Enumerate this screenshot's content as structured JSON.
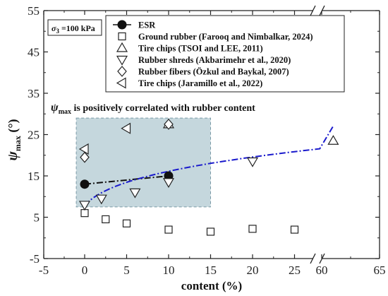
{
  "chart_data": {
    "type": "scatter",
    "x_axis": {
      "label": "content (%)",
      "ticks": [
        "-5",
        "0",
        "5",
        "10",
        "15",
        "20",
        "25",
        "60",
        "65"
      ],
      "tick_values": [
        -5,
        0,
        5,
        10,
        15,
        20,
        25,
        60,
        65
      ],
      "broken": true,
      "segments": [
        [
          -5,
          28
        ],
        [
          59.5,
          65
        ]
      ]
    },
    "y_axis": {
      "label_symbol": "ψ",
      "label_subscript": "max",
      "label_unit": " (°)",
      "ticks": [
        "-5",
        "5",
        "15",
        "25",
        "35",
        "45",
        "55"
      ],
      "ylim": [
        -5,
        55
      ],
      "broken_at_top": true
    },
    "condition_label": {
      "symbol": "σ",
      "subscript": "3",
      "text": " =100 kPa"
    },
    "annotation": {
      "symbol": "ψ",
      "subscript": "max",
      "text": " is positively correlated with rubber content"
    },
    "highlight_region": {
      "x": [
        -1,
        15
      ],
      "y": [
        7.5,
        29
      ]
    },
    "series": [
      {
        "name": "ESR",
        "marker": "filled-circle",
        "points": [
          [
            0,
            13
          ],
          [
            10,
            15
          ]
        ]
      },
      {
        "name": "Ground rubber (Farooq and Nimbalkar, 2024)",
        "marker": "square",
        "points": [
          [
            0,
            6
          ],
          [
            2.5,
            4.5
          ],
          [
            5,
            3.5
          ],
          [
            10,
            2
          ],
          [
            15,
            1.5
          ],
          [
            20,
            2.2
          ],
          [
            25,
            2
          ]
        ]
      },
      {
        "name": "Tire chips (TSOI and LEE, 2011)",
        "marker": "triangle-up",
        "points": [
          [
            10,
            27.5
          ],
          [
            61,
            23.5
          ]
        ]
      },
      {
        "name": "Rubber shreds (Akbarimehr et al., 2020)",
        "marker": "triangle-down",
        "points": [
          [
            0,
            8
          ],
          [
            2,
            9.5
          ],
          [
            6,
            11
          ],
          [
            10,
            13.5
          ],
          [
            20,
            18.5
          ]
        ]
      },
      {
        "name": "Rubber fibers (Özkul and Baykal, 2007)",
        "marker": "diamond",
        "points": [
          [
            0,
            19.5
          ],
          [
            10,
            27.5
          ]
        ]
      },
      {
        "name": "Tire chips (Jaramillo et al., 2022)",
        "marker": "triangle-left",
        "points": [
          [
            0,
            21.5
          ],
          [
            5,
            26.5
          ]
        ]
      }
    ],
    "trend_lines": [
      {
        "style": "dash-dot",
        "color": "#111111",
        "points": [
          [
            0,
            13
          ],
          [
            10,
            15
          ]
        ]
      },
      {
        "style": "dash-dot",
        "color": "#1a1acc",
        "shape": "power",
        "coeffs": [
          7.85,
          0.3
        ],
        "x_range": [
          0,
          61
        ]
      }
    ],
    "colors": {
      "highlight_fill": "#9fbcc6",
      "blue_trend": "#1a1acc",
      "marker_stroke": "#222222"
    }
  }
}
